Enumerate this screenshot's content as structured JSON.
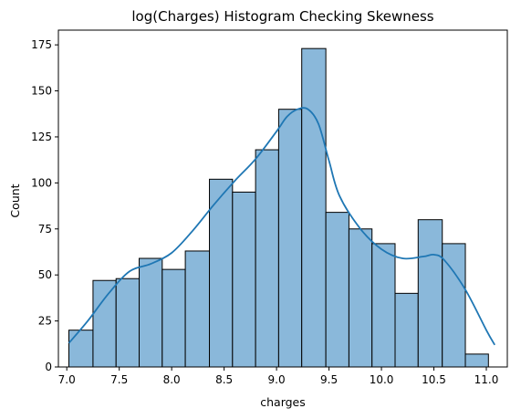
{
  "chart_data": {
    "type": "histogram",
    "title": "log(Charges) Histogram Checking Skewness",
    "xlabel": "charges",
    "ylabel": "Count",
    "xlim": [
      6.92,
      11.2
    ],
    "ylim": [
      0,
      183
    ],
    "x_ticks": [
      7.0,
      7.5,
      8.0,
      8.5,
      9.0,
      9.5,
      10.0,
      10.5,
      11.0
    ],
    "x_tick_labels": [
      "7.0",
      "7.5",
      "8.0",
      "8.5",
      "9.0",
      "9.5",
      "10.0",
      "10.5",
      "11.0"
    ],
    "y_ticks": [
      0,
      25,
      50,
      75,
      100,
      125,
      150,
      175
    ],
    "y_tick_labels": [
      "0",
      "25",
      "50",
      "75",
      "100",
      "125",
      "150",
      "175"
    ],
    "grid": false,
    "legend": "none",
    "bins": [
      {
        "x0": 7.02,
        "x1": 7.25,
        "count": 20
      },
      {
        "x0": 7.25,
        "x1": 7.47,
        "count": 47
      },
      {
        "x0": 7.47,
        "x1": 7.69,
        "count": 48
      },
      {
        "x0": 7.69,
        "x1": 7.91,
        "count": 59
      },
      {
        "x0": 7.91,
        "x1": 8.13,
        "count": 53
      },
      {
        "x0": 8.13,
        "x1": 8.36,
        "count": 63
      },
      {
        "x0": 8.36,
        "x1": 8.58,
        "count": 102
      },
      {
        "x0": 8.58,
        "x1": 8.8,
        "count": 95
      },
      {
        "x0": 8.8,
        "x1": 9.02,
        "count": 118
      },
      {
        "x0": 9.02,
        "x1": 9.24,
        "count": 140
      },
      {
        "x0": 9.24,
        "x1": 9.47,
        "count": 173
      },
      {
        "x0": 9.47,
        "x1": 9.69,
        "count": 84
      },
      {
        "x0": 9.69,
        "x1": 9.91,
        "count": 75
      },
      {
        "x0": 9.91,
        "x1": 10.13,
        "count": 67
      },
      {
        "x0": 10.13,
        "x1": 10.35,
        "count": 40
      },
      {
        "x0": 10.35,
        "x1": 10.58,
        "count": 80
      },
      {
        "x0": 10.58,
        "x1": 10.8,
        "count": 67
      },
      {
        "x0": 10.8,
        "x1": 11.02,
        "count": 7
      }
    ],
    "kde": {
      "x": [
        7.02,
        7.2,
        7.4,
        7.6,
        7.8,
        8.0,
        8.2,
        8.4,
        8.6,
        8.8,
        9.0,
        9.1,
        9.2,
        9.3,
        9.4,
        9.5,
        9.6,
        9.8,
        10.0,
        10.2,
        10.4,
        10.5,
        10.6,
        10.8,
        11.0,
        11.08
      ],
      "y": [
        13,
        25,
        40,
        52,
        56,
        62,
        74,
        88,
        101,
        113,
        128,
        136,
        140,
        140,
        132,
        112,
        93,
        75,
        64,
        59,
        60,
        61,
        58,
        42,
        20,
        12
      ]
    },
    "colors": {
      "bar_fill": "#8ab8da",
      "bar_edge": "#000000",
      "kde_line": "#1f77b4",
      "axes": "#000000"
    }
  }
}
